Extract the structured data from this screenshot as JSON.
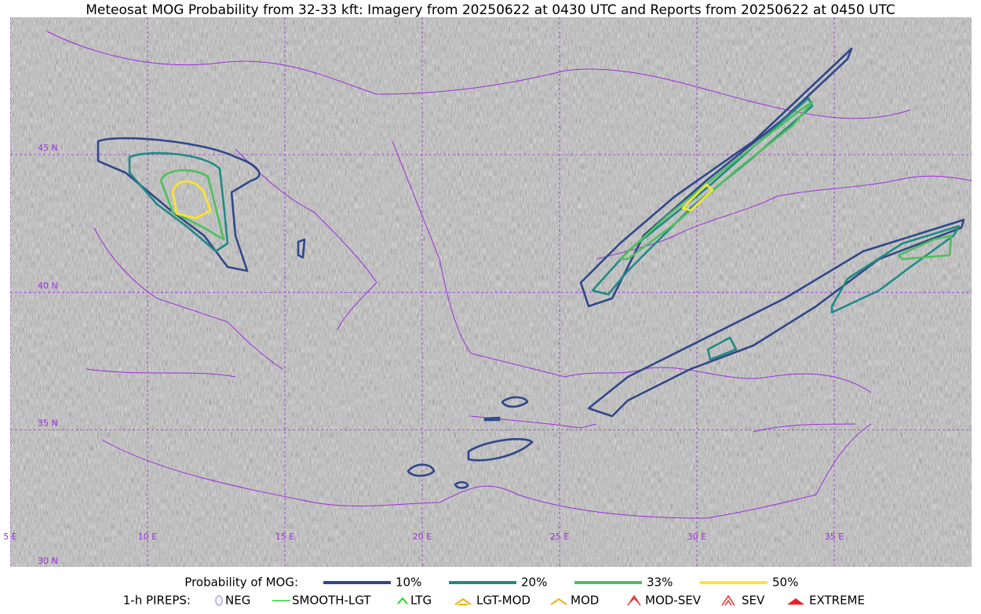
{
  "title": "Meteosat MOG Probability from 32-33 kft: Imagery from 20250622 at 0430 UTC and Reports from 20250622 at 0450 UTC",
  "map": {
    "lon_labels": [
      "5 E",
      "10 E",
      "15 E",
      "20 E",
      "25 E",
      "30 E",
      "35 E"
    ],
    "lat_labels": [
      "45 N",
      "40 N",
      "35 N",
      "30 N"
    ]
  },
  "legend": {
    "probability": {
      "title": "Probability of MOG:",
      "levels": [
        {
          "label": "10%",
          "color": "#30488a"
        },
        {
          "label": "20%",
          "color": "#1f8b85"
        },
        {
          "label": "33%",
          "color": "#4fbf5d"
        },
        {
          "label": "50%",
          "color": "#fde725"
        }
      ]
    },
    "pireps": {
      "title": "1-h PIREPS:",
      "items": [
        "NEG",
        "SMOOTH-LGT",
        "LTG",
        "LGT-MOD",
        "MOD",
        "MOD-SEV",
        "SEV",
        "EXTREME"
      ]
    }
  }
}
